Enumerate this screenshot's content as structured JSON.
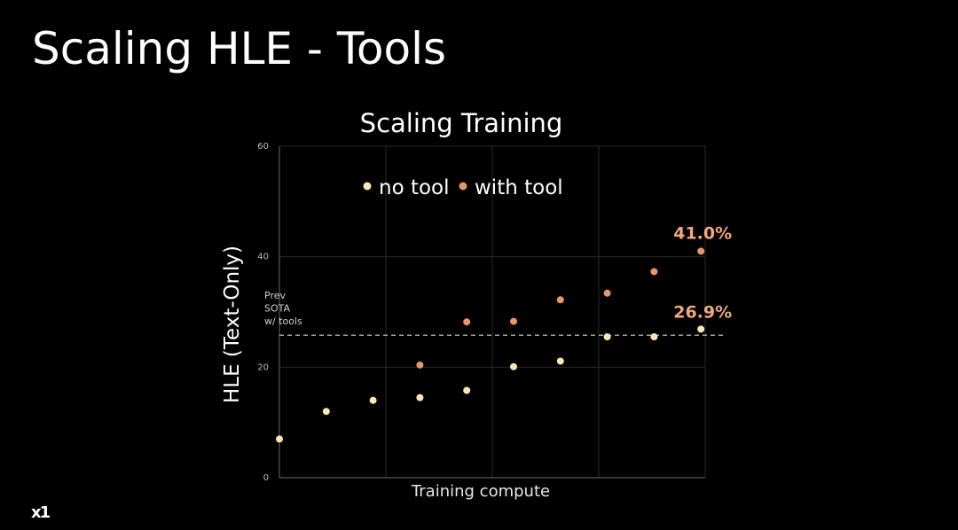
{
  "slide": {
    "title": "Scaling HLE - Tools",
    "logo": "x1"
  },
  "colors": {
    "no_tool": "#FCE6B5",
    "with_tool": "#E8956C",
    "annotation": "#F0A77A",
    "background": "#000000"
  },
  "chart_data": {
    "type": "scatter",
    "title": "Scaling Training",
    "xlabel": "Training compute",
    "ylabel": "HLE (Text-Only)",
    "ylim": [
      0,
      60
    ],
    "yticks": [
      0,
      20,
      40,
      60
    ],
    "xlim": [
      0,
      9
    ],
    "grid": true,
    "legend": "top-left",
    "series": [
      {
        "name": "no tool",
        "color": "#FCE6B5",
        "points": [
          [
            0,
            7
          ],
          [
            1,
            12
          ],
          [
            2,
            14
          ],
          [
            3,
            14.5
          ],
          [
            4,
            15.8
          ],
          [
            5,
            20.1
          ],
          [
            6,
            21.1
          ],
          [
            7,
            25.5
          ],
          [
            8,
            25.5
          ],
          [
            9,
            26.9
          ]
        ]
      },
      {
        "name": "with tool",
        "color": "#E8956C",
        "points": [
          [
            3,
            20.4
          ],
          [
            4,
            28.2
          ],
          [
            5,
            28.3
          ],
          [
            6,
            32.2
          ],
          [
            7,
            33.4
          ],
          [
            8,
            37.3
          ],
          [
            9,
            41.0
          ]
        ]
      }
    ],
    "reference_line": {
      "value": 25.8,
      "label_lines": [
        "Prev",
        "SOTA",
        "w/ tools"
      ]
    },
    "annotations": [
      {
        "text": "41.0%",
        "x": 9,
        "y": 41.0
      },
      {
        "text": "26.9%",
        "x": 9,
        "y": 26.9
      }
    ]
  }
}
